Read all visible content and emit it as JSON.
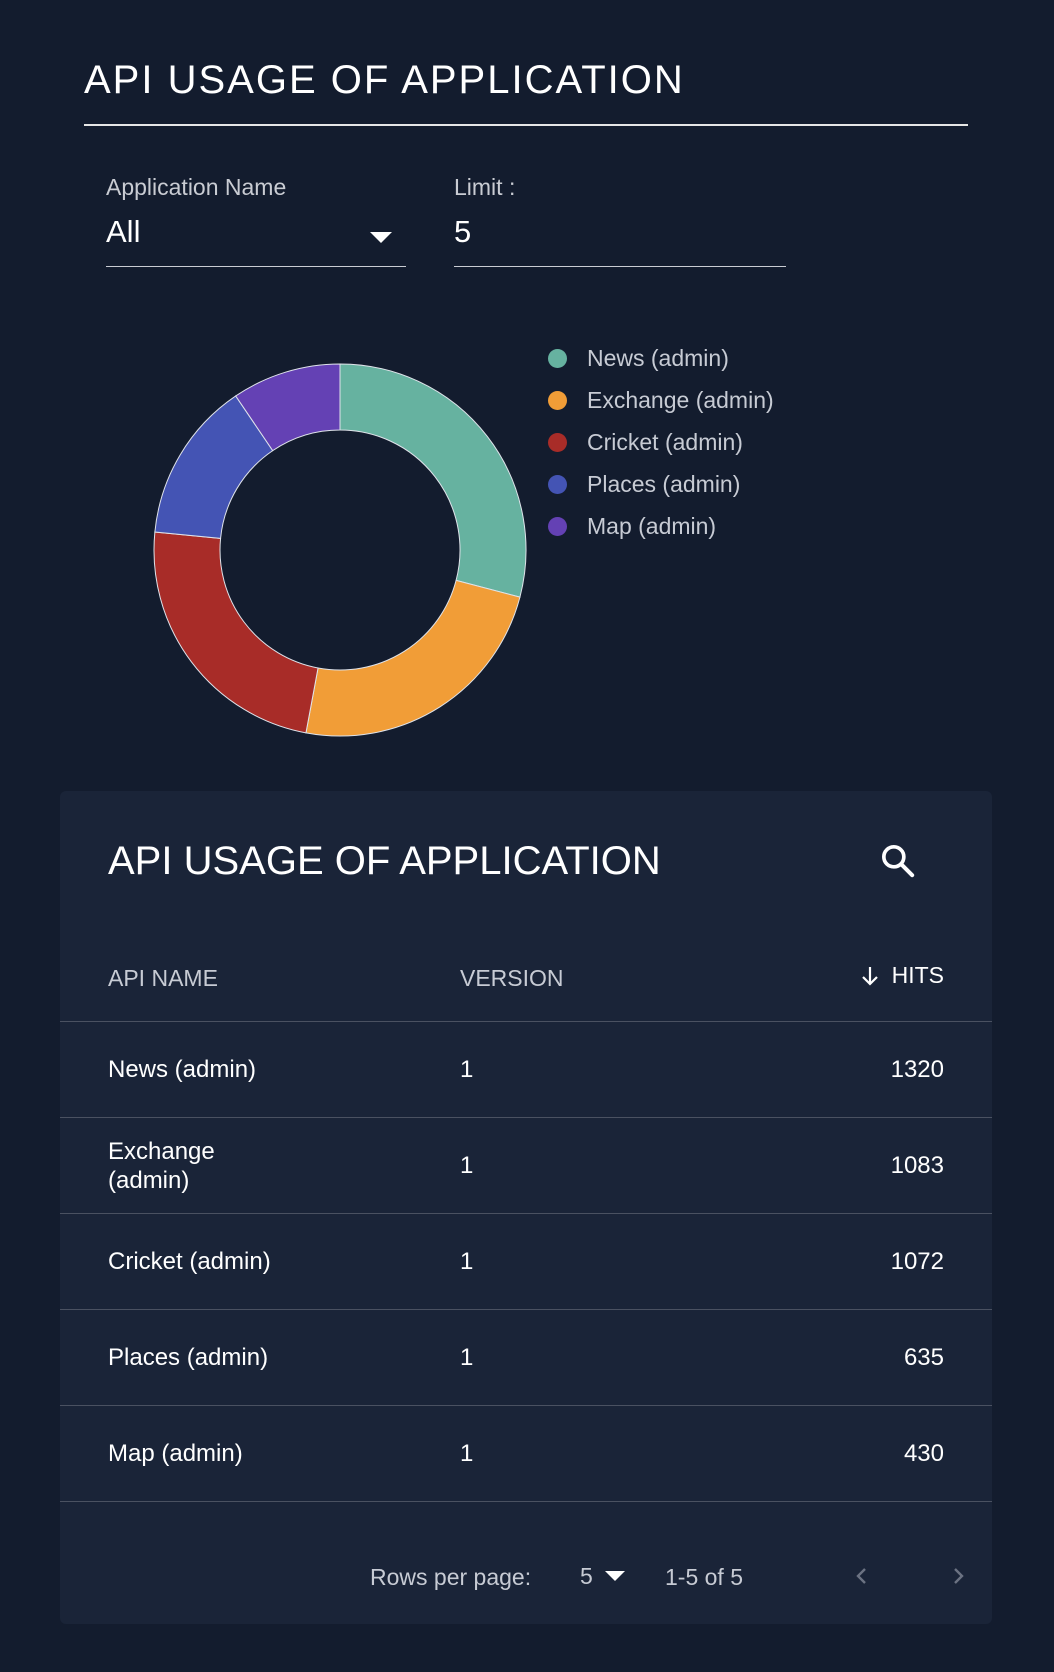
{
  "page": {
    "title": "API USAGE OF APPLICATION"
  },
  "filters": {
    "app_label": "Application Name",
    "app_value": "All",
    "limit_label": "Limit :",
    "limit_value": "5"
  },
  "colors": {
    "background": "#131c2e",
    "card": "#1a2438",
    "news": "#66b2a0",
    "exchange": "#f19d37",
    "cricket": "#a82c28",
    "places": "#4454b4",
    "map": "#6441b4"
  },
  "chart_data": {
    "type": "pie",
    "variant": "donut",
    "legend_position": "right",
    "categories": [
      "News (admin)",
      "Exchange (admin)",
      "Cricket (admin)",
      "Places (admin)",
      "Map (admin)"
    ],
    "values": [
      1320,
      1083,
      1072,
      635,
      430
    ],
    "colors": [
      "#66b2a0",
      "#f19d37",
      "#a82c28",
      "#4454b4",
      "#6441b4"
    ]
  },
  "table": {
    "title": "API USAGE OF APPLICATION",
    "search_icon": "search-icon",
    "sort_icon": "arrow-down-icon",
    "headers": {
      "name": "API NAME",
      "version": "VERSION",
      "hits": "HITS"
    },
    "rows": [
      {
        "name": "News (admin)",
        "version": "1",
        "hits": "1320"
      },
      {
        "name": "Exchange (admin)",
        "version": "1",
        "hits": "1083"
      },
      {
        "name": "Cricket (admin)",
        "version": "1",
        "hits": "1072"
      },
      {
        "name": "Places (admin)",
        "version": "1",
        "hits": "635"
      },
      {
        "name": "Map (admin)",
        "version": "1",
        "hits": "430"
      }
    ],
    "pagination": {
      "rows_per_page_label": "Rows per page:",
      "rows_per_page_value": "5",
      "range": "1-5 of 5"
    }
  }
}
